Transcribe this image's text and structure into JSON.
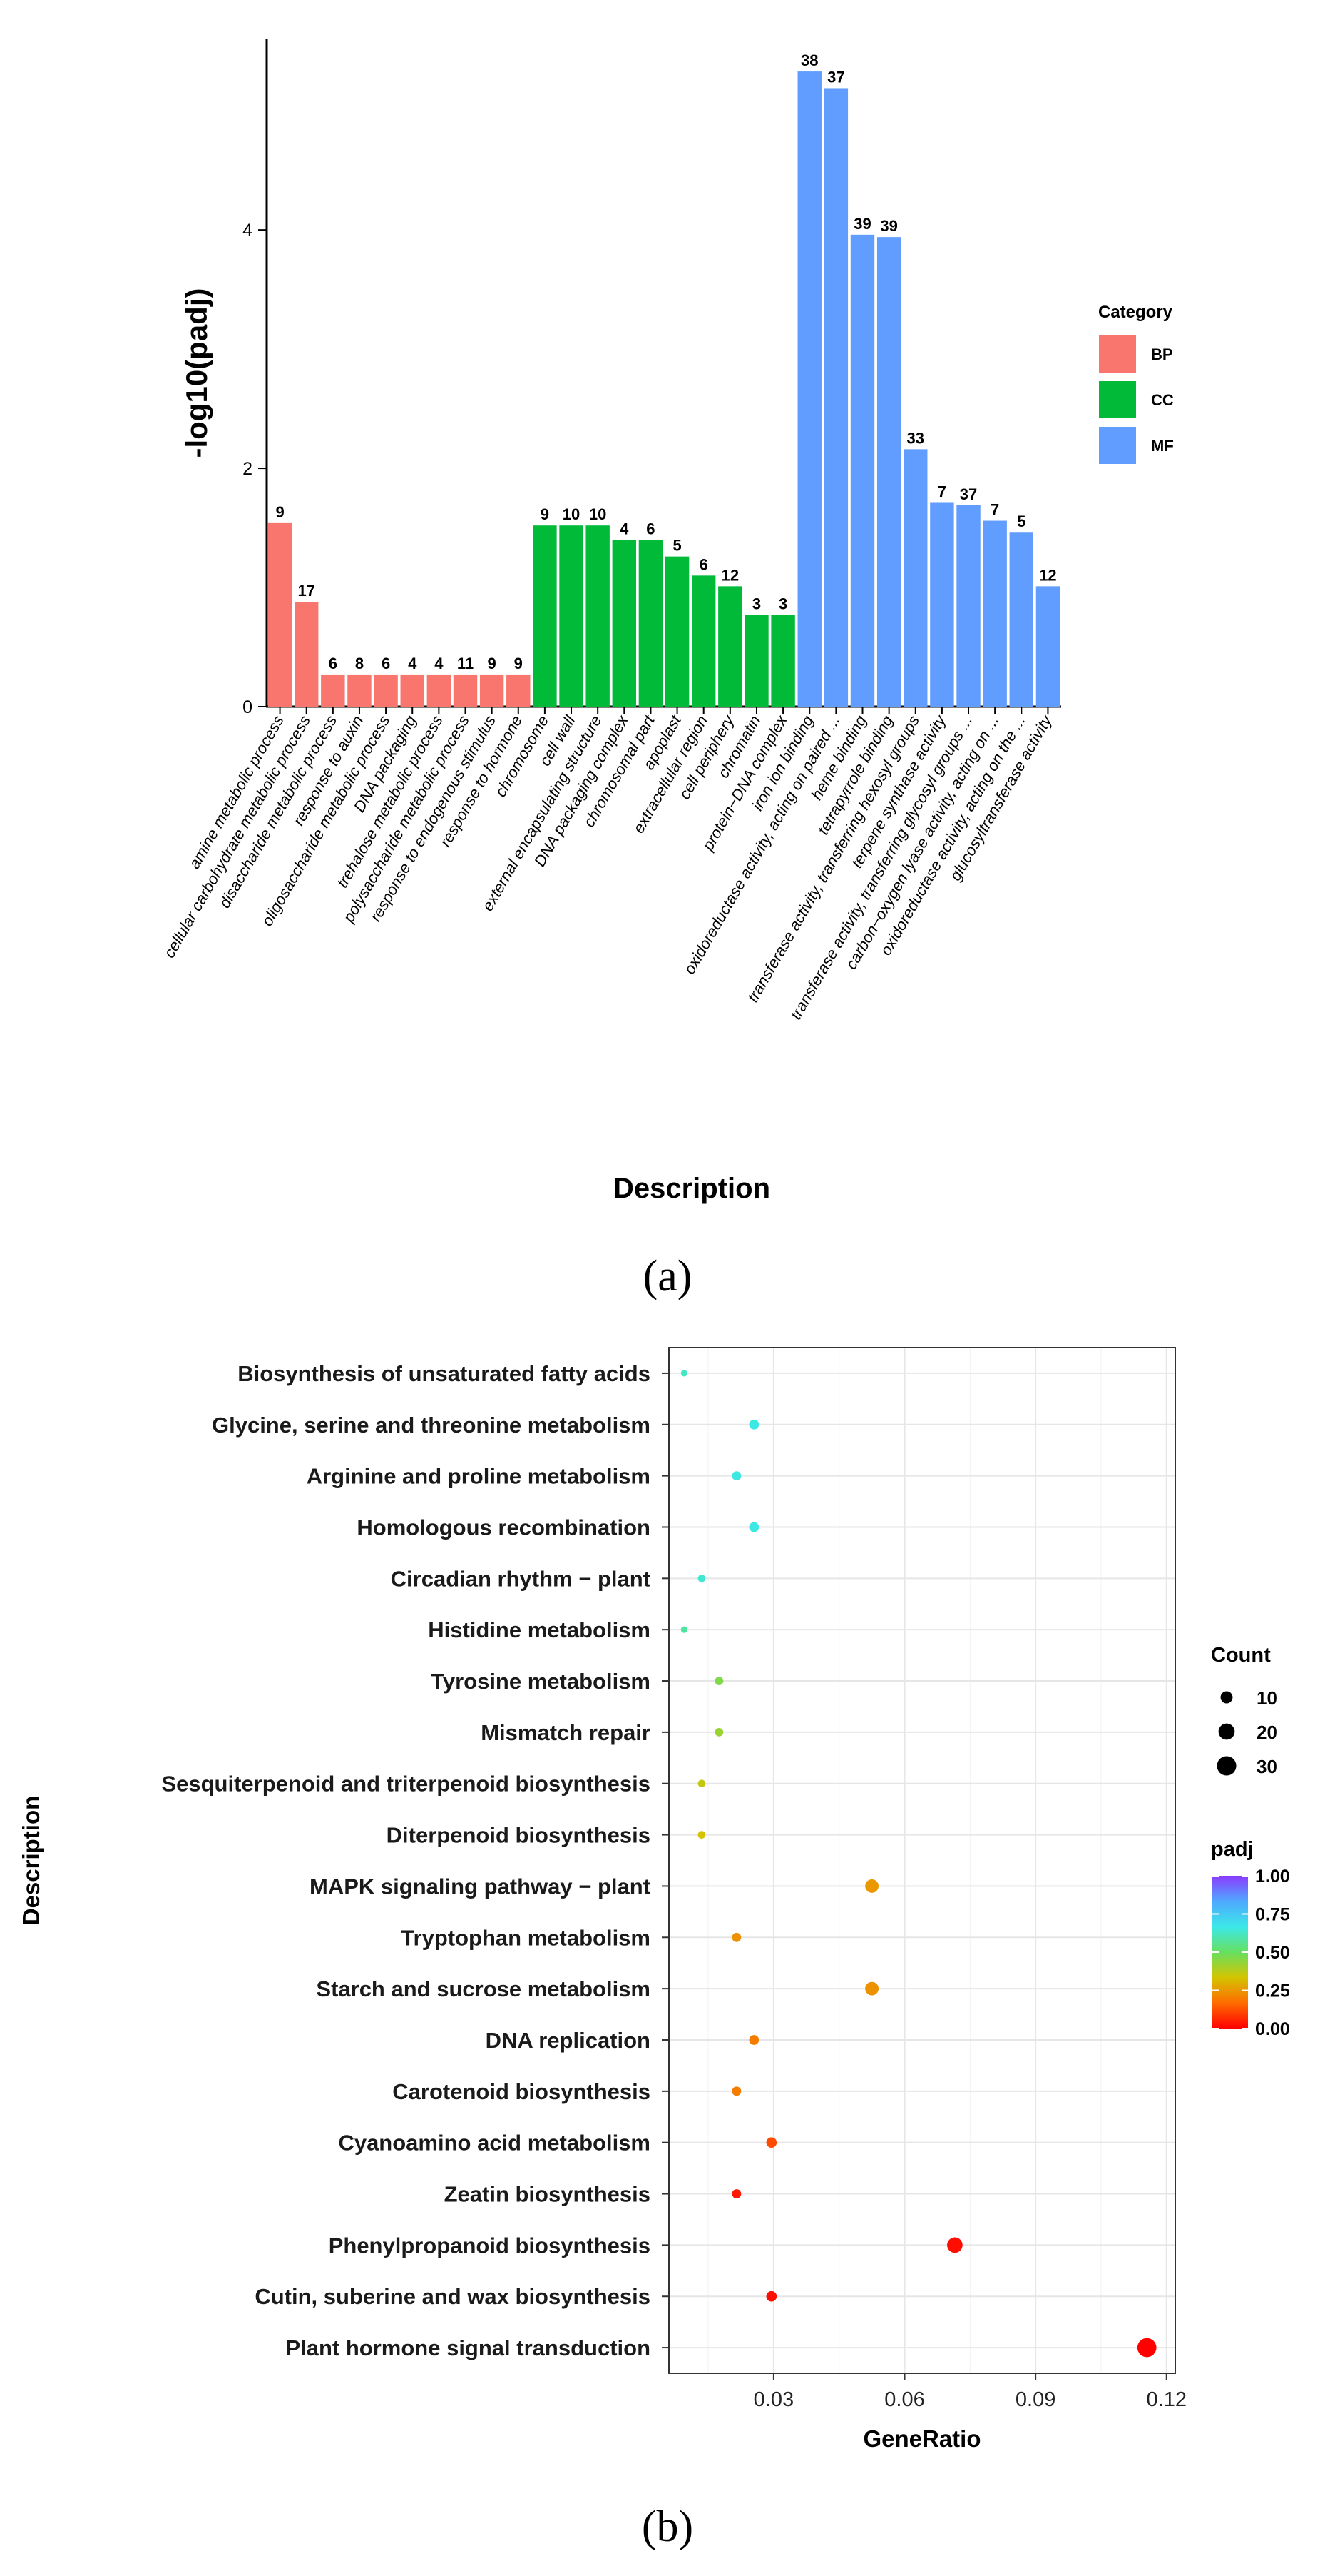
{
  "chart_data": [
    {
      "type": "bar",
      "title": "",
      "xlabel": "Description",
      "ylabel": "-log10(padj)",
      "ylim": [
        0,
        5.6
      ],
      "yticks": [
        0,
        2,
        4
      ],
      "panel_label": "(a)",
      "legend": {
        "title": "Category",
        "placement": "right",
        "entries": [
          {
            "name": "BP",
            "color": "#F8766D"
          },
          {
            "name": "CC",
            "color": "#00BA38"
          },
          {
            "name": "MF",
            "color": "#619CFF"
          }
        ]
      },
      "bars": [
        {
          "label": "amine metabolic process",
          "category": "BP",
          "value": 1.54,
          "count": "9"
        },
        {
          "label": "cellular carbohydrate metabolic process",
          "category": "BP",
          "value": 0.88,
          "count": "17"
        },
        {
          "label": "disaccharide metabolic process",
          "category": "BP",
          "value": 0.27,
          "count": "6"
        },
        {
          "label": "response to auxin",
          "category": "BP",
          "value": 0.27,
          "count": "8"
        },
        {
          "label": "oligosaccharide metabolic process",
          "category": "BP",
          "value": 0.27,
          "count": "6"
        },
        {
          "label": "DNA packaging",
          "category": "BP",
          "value": 0.27,
          "count": "4"
        },
        {
          "label": "trehalose metabolic process",
          "category": "BP",
          "value": 0.27,
          "count": "4"
        },
        {
          "label": "polysaccharide metabolic process",
          "category": "BP",
          "value": 0.27,
          "count": "11"
        },
        {
          "label": "response to endogenous stimulus",
          "category": "BP",
          "value": 0.27,
          "count": "9"
        },
        {
          "label": "response to hormone",
          "category": "BP",
          "value": 0.27,
          "count": "9"
        },
        {
          "label": "chromosome",
          "category": "CC",
          "value": 1.52,
          "count": "9"
        },
        {
          "label": "cell wall",
          "category": "CC",
          "value": 1.52,
          "count": "10"
        },
        {
          "label": "external encapsulating structure",
          "category": "CC",
          "value": 1.52,
          "count": "10"
        },
        {
          "label": "DNA packaging complex",
          "category": "CC",
          "value": 1.4,
          "count": "4"
        },
        {
          "label": "chromosomal part",
          "category": "CC",
          "value": 1.4,
          "count": "6"
        },
        {
          "label": "apoplast",
          "category": "CC",
          "value": 1.26,
          "count": "5"
        },
        {
          "label": "extracellular region",
          "category": "CC",
          "value": 1.1,
          "count": "6"
        },
        {
          "label": "cell periphery",
          "category": "CC",
          "value": 1.01,
          "count": "12"
        },
        {
          "label": "chromatin",
          "category": "CC",
          "value": 0.77,
          "count": "3"
        },
        {
          "label": "protein−DNA complex",
          "category": "CC",
          "value": 0.77,
          "count": "3"
        },
        {
          "label": "iron ion binding",
          "category": "MF",
          "value": 5.33,
          "count": "38"
        },
        {
          "label": "oxidoreductase activity, acting on paired ...",
          "category": "MF",
          "value": 5.19,
          "count": "37"
        },
        {
          "label": "heme binding",
          "category": "MF",
          "value": 3.96,
          "count": "39"
        },
        {
          "label": "tetrapyrrole binding",
          "category": "MF",
          "value": 3.94,
          "count": "39"
        },
        {
          "label": "transferase activity, transferring hexosyl groups",
          "category": "MF",
          "value": 2.16,
          "count": "33"
        },
        {
          "label": "terpene synthase activity",
          "category": "MF",
          "value": 1.71,
          "count": "7"
        },
        {
          "label": "transferase activity, transferring glycosyl groups ...",
          "category": "MF",
          "value": 1.69,
          "count": "37"
        },
        {
          "label": "carbon−oxygen lyase activity, acting on ...",
          "category": "MF",
          "value": 1.56,
          "count": "7"
        },
        {
          "label": "oxidoreductase activity, acting on the ...",
          "category": "MF",
          "value": 1.46,
          "count": "5"
        },
        {
          "label": "glucosyltransferase activity",
          "category": "MF",
          "value": 1.01,
          "count": "12"
        }
      ]
    },
    {
      "type": "scatter",
      "title": "",
      "xlabel": "GeneRatio",
      "ylabel": "Description",
      "xlim": [
        0.006,
        0.122
      ],
      "xticks": [
        0.03,
        0.06,
        0.09,
        0.12
      ],
      "xtick_labels": [
        "0.03",
        "0.06",
        "0.09",
        "0.12"
      ],
      "grid": true,
      "panel_label": "(b)",
      "size_legend": {
        "title": "Count",
        "values": [
          10,
          20,
          30
        ],
        "labels": [
          "10",
          "20",
          "30"
        ]
      },
      "color_legend": {
        "title": "padj",
        "range": [
          0,
          1
        ],
        "tick_labels": [
          "1.00",
          "0.75",
          "0.50",
          "0.25",
          "0.00"
        ],
        "tick_values": [
          1.0,
          0.75,
          0.5,
          0.25,
          0.0
        ],
        "stops": [
          "#FF0000",
          "#FF6A00",
          "#D4C400",
          "#66E060",
          "#3BE8E8",
          "#4FA8FF",
          "#8B3BFF"
        ]
      },
      "points": [
        {
          "label": "Biosynthesis of unsaturated fatty acids",
          "gene_ratio": 0.0095,
          "count": 2,
          "padj": 0.62
        },
        {
          "label": "Glycine, serine and threonine metabolism",
          "gene_ratio": 0.0255,
          "count": 6,
          "padj": 0.66
        },
        {
          "label": "Arginine and proline metabolism",
          "gene_ratio": 0.0215,
          "count": 5,
          "padj": 0.66
        },
        {
          "label": "Homologous recombination",
          "gene_ratio": 0.0255,
          "count": 6,
          "padj": 0.66
        },
        {
          "label": "Circadian rhythm − plant",
          "gene_ratio": 0.0135,
          "count": 3,
          "padj": 0.64
        },
        {
          "label": "Histidine metabolism",
          "gene_ratio": 0.0095,
          "count": 2,
          "padj": 0.58
        },
        {
          "label": "Tyrosine metabolism",
          "gene_ratio": 0.0175,
          "count": 4,
          "padj": 0.46
        },
        {
          "label": "Mismatch repair",
          "gene_ratio": 0.0175,
          "count": 4,
          "padj": 0.42
        },
        {
          "label": "Sesquiterpenoid and triterpenoid biosynthesis",
          "gene_ratio": 0.0135,
          "count": 3,
          "padj": 0.36
        },
        {
          "label": "Diterpenoid biosynthesis",
          "gene_ratio": 0.0135,
          "count": 3,
          "padj": 0.33
        },
        {
          "label": "MAPK signaling pathway − plant",
          "gene_ratio": 0.0525,
          "count": 13,
          "padj": 0.25
        },
        {
          "label": "Tryptophan metabolism",
          "gene_ratio": 0.0215,
          "count": 5,
          "padj": 0.24
        },
        {
          "label": "Starch and sucrose metabolism",
          "gene_ratio": 0.0525,
          "count": 13,
          "padj": 0.24
        },
        {
          "label": "DNA replication",
          "gene_ratio": 0.0255,
          "count": 6,
          "padj": 0.2
        },
        {
          "label": "Carotenoid biosynthesis",
          "gene_ratio": 0.0215,
          "count": 5,
          "padj": 0.2
        },
        {
          "label": "Cyanoamino acid metabolism",
          "gene_ratio": 0.0295,
          "count": 7,
          "padj": 0.12
        },
        {
          "label": "Zeatin biosynthesis",
          "gene_ratio": 0.0215,
          "count": 5,
          "padj": 0.04
        },
        {
          "label": "Phenylpropanoid biosynthesis",
          "gene_ratio": 0.0715,
          "count": 18,
          "padj": 0.02
        },
        {
          "label": "Cutin, suberine and wax biosynthesis",
          "gene_ratio": 0.0295,
          "count": 7,
          "padj": 0.02
        },
        {
          "label": "Plant hormone signal transduction",
          "gene_ratio": 0.1155,
          "count": 29,
          "padj": 0.0
        }
      ]
    }
  ]
}
